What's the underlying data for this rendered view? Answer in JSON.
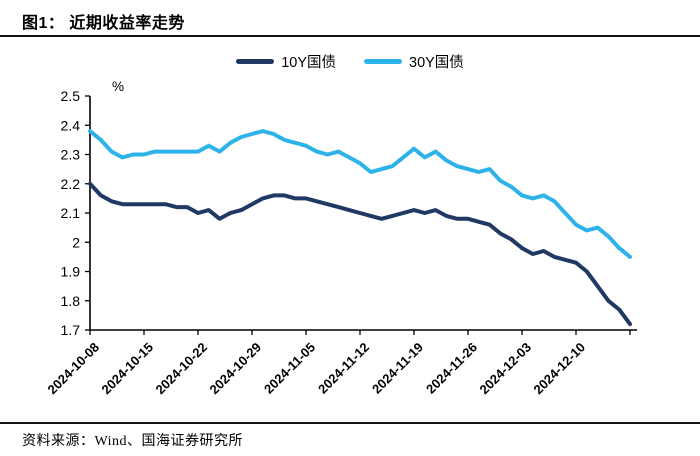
{
  "figure": {
    "title": "图1： 近期收益率走势",
    "source": "资料来源：Wind、国海证券研究所"
  },
  "legend": [
    {
      "label": "10Y国债",
      "color": "#1F3864"
    },
    {
      "label": "30Y国债",
      "color": "#2DB3E9"
    }
  ],
  "chart_data": {
    "type": "line",
    "title": "近期收益率走势",
    "unit_label": "%",
    "ylim": [
      1.7,
      2.5
    ],
    "y_ticks": [
      2.5,
      2.4,
      2.3,
      2.2,
      2.1,
      2,
      1.9,
      1.8,
      1.7
    ],
    "x_tick_labels": [
      "2024-10-08",
      "2024-10-15",
      "2024-10-22",
      "2024-10-29",
      "2024-11-05",
      "2024-11-12",
      "2024-11-19",
      "2024-11-26",
      "2024-12-03",
      "2024-12-10"
    ],
    "grid": false,
    "legend_position": "top",
    "x": [
      "2024-10-08",
      "2024-10-09",
      "2024-10-10",
      "2024-10-11",
      "2024-10-14",
      "2024-10-15",
      "2024-10-16",
      "2024-10-17",
      "2024-10-18",
      "2024-10-21",
      "2024-10-22",
      "2024-10-23",
      "2024-10-24",
      "2024-10-25",
      "2024-10-28",
      "2024-10-29",
      "2024-10-30",
      "2024-10-31",
      "2024-11-01",
      "2024-11-04",
      "2024-11-05",
      "2024-11-06",
      "2024-11-07",
      "2024-11-08",
      "2024-11-11",
      "2024-11-12",
      "2024-11-13",
      "2024-11-14",
      "2024-11-15",
      "2024-11-18",
      "2024-11-19",
      "2024-11-20",
      "2024-11-21",
      "2024-11-22",
      "2024-11-25",
      "2024-11-26",
      "2024-11-27",
      "2024-11-28",
      "2024-11-29",
      "2024-12-02",
      "2024-12-03",
      "2024-12-04",
      "2024-12-05",
      "2024-12-06",
      "2024-12-09",
      "2024-12-10",
      "2024-12-11",
      "2024-12-12",
      "2024-12-13",
      "2024-12-16",
      "2024-12-17"
    ],
    "series": [
      {
        "name": "10Y国债",
        "color": "#1F3864",
        "values": [
          2.2,
          2.16,
          2.14,
          2.13,
          2.13,
          2.13,
          2.13,
          2.13,
          2.12,
          2.12,
          2.1,
          2.11,
          2.08,
          2.1,
          2.11,
          2.13,
          2.15,
          2.16,
          2.16,
          2.15,
          2.15,
          2.14,
          2.13,
          2.12,
          2.11,
          2.1,
          2.09,
          2.08,
          2.09,
          2.1,
          2.11,
          2.1,
          2.11,
          2.09,
          2.08,
          2.08,
          2.07,
          2.06,
          2.03,
          2.01,
          1.98,
          1.96,
          1.97,
          1.95,
          1.94,
          1.93,
          1.9,
          1.85,
          1.8,
          1.77,
          1.72
        ]
      },
      {
        "name": "30Y国债",
        "color": "#2DB3E9",
        "values": [
          2.38,
          2.35,
          2.31,
          2.29,
          2.3,
          2.3,
          2.31,
          2.31,
          2.31,
          2.31,
          2.31,
          2.33,
          2.31,
          2.34,
          2.36,
          2.37,
          2.38,
          2.37,
          2.35,
          2.34,
          2.33,
          2.31,
          2.3,
          2.31,
          2.29,
          2.27,
          2.24,
          2.25,
          2.26,
          2.29,
          2.32,
          2.29,
          2.31,
          2.28,
          2.26,
          2.25,
          2.24,
          2.25,
          2.21,
          2.19,
          2.16,
          2.15,
          2.16,
          2.14,
          2.1,
          2.06,
          2.04,
          2.05,
          2.02,
          1.98,
          1.95
        ]
      }
    ]
  }
}
